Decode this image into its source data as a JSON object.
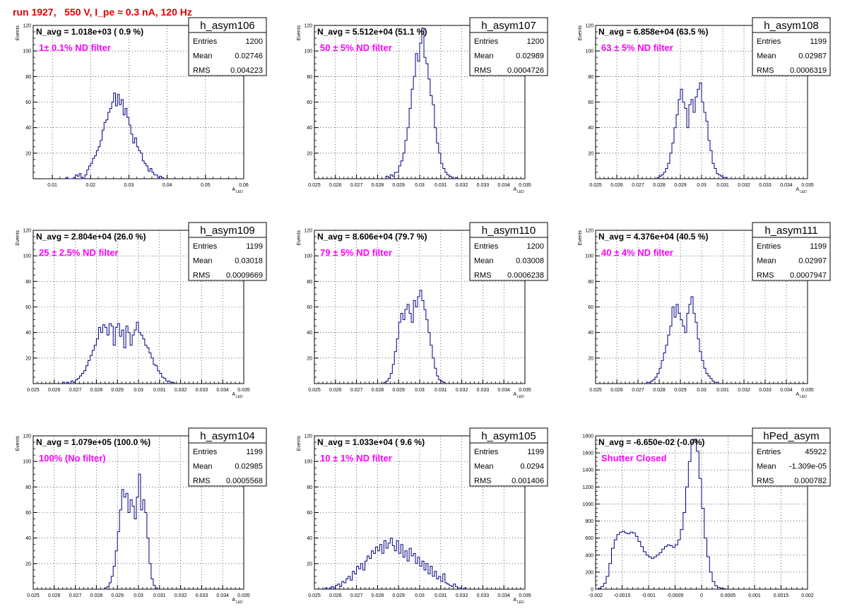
{
  "header": {
    "run_label": "run 1927,   550 V, I_pe ≈ 0.3 nA, 120 Hz"
  },
  "colors": {
    "hist_line": "#000080",
    "annotation_text": "#ff00ff",
    "title_text": "#e00000",
    "grid": "#000000"
  },
  "chart_data": [
    {
      "type": "bar",
      "name": "h_asym106",
      "stats": [
        [
          "Entries",
          "1200"
        ],
        [
          "Mean",
          "0.02746"
        ],
        [
          "RMS",
          "0.004223"
        ]
      ],
      "navg_label": "N_avg = 1.018e+03 ( 0.9 %)",
      "annotation": "1± 0.1% ND filter",
      "ylabel": "Events",
      "xlabel": "A",
      "xlabel_sub": "LED",
      "xlim": [
        0.005,
        0.06
      ],
      "ylim": [
        0,
        120
      ],
      "xticks": [
        0.01,
        0.02,
        0.03,
        0.04,
        0.05,
        0.06
      ],
      "xtick_labels": [
        "0.01",
        "0.02",
        "0.03",
        "0.04",
        "0.05",
        "0.06"
      ],
      "yticks": [
        0,
        20,
        40,
        60,
        80,
        100,
        120
      ],
      "ytick_labels": [
        "",
        "20",
        "40",
        "60",
        "80",
        "100",
        "120"
      ],
      "grid": true,
      "bins": {
        "x0": 0.0135,
        "width": 0.0005,
        "values": [
          1,
          0,
          0,
          0,
          1,
          3,
          2,
          4,
          1,
          0,
          3,
          7,
          10,
          12,
          16,
          18,
          22,
          25,
          30,
          38,
          44,
          46,
          52,
          55,
          60,
          67,
          57,
          66,
          58,
          62,
          50,
          55,
          48,
          42,
          35,
          28,
          32,
          25,
          22,
          20,
          14,
          12,
          10,
          6,
          8,
          5,
          3,
          3,
          1,
          2,
          1
        ]
      }
    },
    {
      "type": "bar",
      "name": "h_asym107",
      "stats": [
        [
          "Entries",
          "1200"
        ],
        [
          "Mean",
          "0.02989"
        ],
        [
          "RMS",
          "0.0004726"
        ]
      ],
      "navg_label": "N_avg = 5.512e+04 (51.1 %)",
      "annotation": "50 ± 5% ND filter",
      "ylabel": "Events",
      "xlabel": "A",
      "xlabel_sub": "LED",
      "xlim": [
        0.025,
        0.035
      ],
      "ylim": [
        0,
        120
      ],
      "xticks": [
        0.025,
        0.026,
        0.027,
        0.028,
        0.029,
        0.03,
        0.031,
        0.032,
        0.033,
        0.034,
        0.035
      ],
      "xtick_labels": [
        "0.025",
        "0.026",
        "0.027",
        "0.028",
        "0.029",
        "0.03",
        "0.031",
        "0.032",
        "0.033",
        "0.034",
        "0.035"
      ],
      "yticks": [
        0,
        20,
        40,
        60,
        80,
        100,
        120
      ],
      "ytick_labels": [
        "",
        "20",
        "40",
        "60",
        "80",
        "100",
        "120"
      ],
      "grid": true,
      "bins": {
        "x0": 0.0284,
        "width": 0.0001,
        "values": [
          2,
          1,
          3,
          2,
          5,
          5,
          10,
          14,
          20,
          30,
          40,
          55,
          70,
          80,
          98,
          92,
          106,
          118,
          95,
          90,
          78,
          65,
          58,
          40,
          28,
          20,
          12,
          8,
          5,
          3,
          2,
          1,
          0,
          1
        ]
      }
    },
    {
      "type": "bar",
      "name": "h_asym108",
      "stats": [
        [
          "Entries",
          "1199"
        ],
        [
          "Mean",
          "0.02987"
        ],
        [
          "RMS",
          "0.0006319"
        ]
      ],
      "navg_label": "N_avg = 6.858e+04 (63.5 %)",
      "annotation": "63 ± 5% ND filter",
      "ylabel": "Events",
      "xlabel": "A",
      "xlabel_sub": "LED",
      "xlim": [
        0.025,
        0.035
      ],
      "ylim": [
        0,
        120
      ],
      "xticks": [
        0.025,
        0.026,
        0.027,
        0.028,
        0.029,
        0.03,
        0.031,
        0.032,
        0.033,
        0.034,
        0.035
      ],
      "xtick_labels": [
        "0.025",
        "0.026",
        "0.027",
        "0.028",
        "0.029",
        "0.03",
        "0.031",
        "0.032",
        "0.033",
        "0.034",
        "0.035"
      ],
      "yticks": [
        0,
        20,
        40,
        60,
        80,
        100,
        120
      ],
      "ytick_labels": [
        "",
        "20",
        "40",
        "60",
        "80",
        "100",
        "120"
      ],
      "grid": true,
      "bins": {
        "x0": 0.0279,
        "width": 0.0001,
        "values": [
          1,
          2,
          3,
          5,
          8,
          12,
          20,
          28,
          40,
          50,
          62,
          70,
          60,
          55,
          40,
          58,
          62,
          52,
          64,
          70,
          75,
          60,
          52,
          45,
          30,
          22,
          12,
          8,
          4,
          3,
          2,
          1,
          1
        ]
      }
    },
    {
      "type": "bar",
      "name": "h_asym109",
      "stats": [
        [
          "Entries",
          "1199"
        ],
        [
          "Mean",
          "0.03018"
        ],
        [
          "RMS",
          "0.0009669"
        ]
      ],
      "navg_label": "N_avg = 2.804e+04 (26.0 %)",
      "annotation": "25 ± 2.5% ND filter",
      "ylabel": "Events",
      "xlabel": "A",
      "xlabel_sub": "LED",
      "xlim": [
        0.025,
        0.035
      ],
      "ylim": [
        0,
        120
      ],
      "xticks": [
        0.025,
        0.026,
        0.027,
        0.028,
        0.029,
        0.03,
        0.031,
        0.032,
        0.033,
        0.034,
        0.035
      ],
      "xtick_labels": [
        "0.025",
        "0.026",
        "0.027",
        "0.028",
        "0.029",
        "0.03",
        "0.031",
        "0.032",
        "0.033",
        "0.034",
        "0.035"
      ],
      "yticks": [
        0,
        20,
        40,
        60,
        80,
        100,
        120
      ],
      "ytick_labels": [
        "",
        "20",
        "40",
        "60",
        "80",
        "100",
        "120"
      ],
      "grid": true,
      "bins": {
        "x0": 0.0264,
        "width": 0.0001,
        "values": [
          1,
          0,
          1,
          0,
          2,
          1,
          3,
          4,
          6,
          8,
          10,
          14,
          18,
          22,
          26,
          30,
          35,
          44,
          40,
          46,
          44,
          38,
          47,
          45,
          30,
          44,
          47,
          37,
          42,
          28,
          45,
          40,
          30,
          38,
          42,
          48,
          40,
          38,
          35,
          30,
          28,
          24,
          20,
          15,
          14,
          10,
          8,
          5,
          4,
          2,
          2,
          1,
          1
        ]
      }
    },
    {
      "type": "bar",
      "name": "h_asym110",
      "stats": [
        [
          "Entries",
          "1200"
        ],
        [
          "Mean",
          "0.03008"
        ],
        [
          "RMS",
          "0.0006238"
        ]
      ],
      "navg_label": "N_avg = 8.606e+04 (79.7 %)",
      "annotation": "79 ± 5% ND filter",
      "ylabel": "Events",
      "xlabel": "A",
      "xlabel_sub": "LED",
      "xlim": [
        0.025,
        0.035
      ],
      "ylim": [
        0,
        120
      ],
      "xticks": [
        0.025,
        0.026,
        0.027,
        0.028,
        0.029,
        0.03,
        0.031,
        0.032,
        0.033,
        0.034,
        0.035
      ],
      "xtick_labels": [
        "0.025",
        "0.026",
        "0.027",
        "0.028",
        "0.029",
        "0.03",
        "0.031",
        "0.032",
        "0.033",
        "0.034",
        "0.035"
      ],
      "yticks": [
        0,
        20,
        40,
        60,
        80,
        100,
        120
      ],
      "ytick_labels": [
        "",
        "20",
        "40",
        "60",
        "80",
        "100",
        "120"
      ],
      "grid": true,
      "bins": {
        "x0": 0.0283,
        "width": 0.0001,
        "values": [
          1,
          2,
          4,
          8,
          15,
          25,
          35,
          48,
          55,
          50,
          58,
          62,
          55,
          48,
          65,
          60,
          68,
          73,
          65,
          58,
          50,
          40,
          30,
          20,
          12,
          6,
          3,
          2,
          1
        ]
      }
    },
    {
      "type": "bar",
      "name": "h_asym111",
      "stats": [
        [
          "Entries",
          "1199"
        ],
        [
          "Mean",
          "0.02997"
        ],
        [
          "RMS",
          "0.0007947"
        ]
      ],
      "navg_label": "N_avg = 4.376e+04 (40.5 %)",
      "annotation": "40 ± 4% ND filter",
      "ylabel": "Events",
      "xlabel": "A",
      "xlabel_sub": "LED",
      "xlim": [
        0.025,
        0.035
      ],
      "ylim": [
        0,
        120
      ],
      "xticks": [
        0.025,
        0.026,
        0.027,
        0.028,
        0.029,
        0.03,
        0.031,
        0.032,
        0.033,
        0.034,
        0.035
      ],
      "xtick_labels": [
        "0.025",
        "0.026",
        "0.027",
        "0.028",
        "0.029",
        "0.03",
        "0.031",
        "0.032",
        "0.033",
        "0.034",
        "0.035"
      ],
      "yticks": [
        0,
        20,
        40,
        60,
        80,
        100,
        120
      ],
      "ytick_labels": [
        "",
        "20",
        "40",
        "60",
        "80",
        "100",
        "120"
      ],
      "grid": true,
      "bins": {
        "x0": 0.0274,
        "width": 0.0001,
        "values": [
          1,
          1,
          2,
          3,
          5,
          8,
          12,
          18,
          24,
          30,
          38,
          45,
          60,
          52,
          62,
          55,
          50,
          45,
          40,
          55,
          62,
          68,
          55,
          48,
          35,
          25,
          18,
          12,
          8,
          6,
          4,
          2,
          1,
          1
        ]
      }
    },
    {
      "type": "bar",
      "name": "h_asym104",
      "stats": [
        [
          "Entries",
          "1199"
        ],
        [
          "Mean",
          "0.02985"
        ],
        [
          "RMS",
          "0.0005568"
        ]
      ],
      "navg_label": "N_avg = 1.079e+05 (100.0 %)",
      "annotation": "100% (No filter)",
      "ylabel": "Events",
      "xlabel": "A",
      "xlabel_sub": "LED",
      "xlim": [
        0.025,
        0.035
      ],
      "ylim": [
        0,
        120
      ],
      "xticks": [
        0.025,
        0.026,
        0.027,
        0.028,
        0.029,
        0.03,
        0.031,
        0.032,
        0.033,
        0.034,
        0.035
      ],
      "xtick_labels": [
        "0.025",
        "0.026",
        "0.027",
        "0.028",
        "0.029",
        "0.03",
        "0.031",
        "0.032",
        "0.033",
        "0.034",
        "0.035"
      ],
      "yticks": [
        0,
        20,
        40,
        60,
        80,
        100,
        120
      ],
      "ytick_labels": [
        "",
        "20",
        "40",
        "60",
        "80",
        "100",
        "120"
      ],
      "grid": true,
      "bins": {
        "x0": 0.0284,
        "width": 0.0001,
        "values": [
          1,
          2,
          5,
          10,
          18,
          30,
          45,
          62,
          78,
          72,
          75,
          60,
          70,
          65,
          55,
          72,
          90,
          62,
          70,
          60,
          40,
          20,
          8,
          3,
          1
        ]
      }
    },
    {
      "type": "bar",
      "name": "h_asym105",
      "stats": [
        [
          "Entries",
          "1199"
        ],
        [
          "Mean",
          "0.0294"
        ],
        [
          "RMS",
          "0.001406"
        ]
      ],
      "navg_label": "N_avg = 1.033e+04 ( 9.6 %)",
      "annotation": "10 ± 1% ND filter",
      "ylabel": "Events",
      "xlabel": "A",
      "xlabel_sub": "LED",
      "xlim": [
        0.025,
        0.035
      ],
      "ylim": [
        0,
        120
      ],
      "xticks": [
        0.025,
        0.026,
        0.027,
        0.028,
        0.029,
        0.03,
        0.031,
        0.032,
        0.033,
        0.034,
        0.035
      ],
      "xtick_labels": [
        "0.025",
        "0.026",
        "0.027",
        "0.028",
        "0.029",
        "0.03",
        "0.031",
        "0.032",
        "0.033",
        "0.034",
        "0.035"
      ],
      "yticks": [
        0,
        20,
        40,
        60,
        80,
        100,
        120
      ],
      "ytick_labels": [
        "",
        "20",
        "40",
        "60",
        "80",
        "100",
        "120"
      ],
      "grid": true,
      "bins": {
        "x0": 0.0255,
        "width": 0.0001,
        "values": [
          1,
          0,
          1,
          2,
          1,
          3,
          4,
          2,
          6,
          5,
          8,
          10,
          7,
          14,
          12,
          18,
          16,
          20,
          15,
          22,
          26,
          24,
          30,
          28,
          33,
          30,
          35,
          28,
          38,
          32,
          36,
          40,
          34,
          30,
          38,
          28,
          35,
          25,
          30,
          22,
          32,
          26,
          28,
          20,
          25,
          18,
          22,
          15,
          20,
          12,
          18,
          10,
          14,
          8,
          10,
          6,
          12,
          5,
          4,
          3,
          2,
          4,
          2,
          1,
          1,
          0,
          1
        ]
      }
    },
    {
      "type": "bar",
      "name": "hPed_asym",
      "stats": [
        [
          "Entries",
          "45922"
        ],
        [
          "Mean",
          "-1.309e-05"
        ],
        [
          "RMS",
          "0.000782"
        ]
      ],
      "navg_label": "N_avg = -6.650e-02 (-0.0%)",
      "annotation": "Shutter Closed",
      "ylabel": "",
      "xlabel": "",
      "xlabel_sub": "",
      "xlim": [
        -0.002,
        0.002
      ],
      "ylim": [
        0,
        1800
      ],
      "xticks": [
        -0.002,
        -0.0015,
        -0.001,
        -0.0005,
        0,
        0.0005,
        0.001,
        0.0015,
        0.002
      ],
      "xtick_labels": [
        "-0.002",
        "-0.0015",
        "-0.001",
        "-0.0005",
        "0",
        "0.0005",
        "0.001",
        "0.0015",
        "0.002"
      ],
      "yticks": [
        0,
        200,
        400,
        600,
        800,
        1000,
        1200,
        1400,
        1600,
        1800
      ],
      "ytick_labels": [
        "0",
        "200",
        "400",
        "600",
        "800",
        "1000",
        "1200",
        "1400",
        "1600",
        "1800"
      ],
      "grid": true,
      "bins": {
        "x0": -0.00195,
        "width": 5e-05,
        "values": [
          10,
          30,
          70,
          150,
          300,
          480,
          580,
          640,
          670,
          680,
          660,
          650,
          670,
          660,
          620,
          560,
          500,
          440,
          400,
          380,
          360,
          380,
          400,
          430,
          470,
          500,
          520,
          510,
          490,
          520,
          580,
          700,
          900,
          1200,
          1500,
          1720,
          1760,
          1620,
          1300,
          950,
          600,
          380,
          200,
          90,
          40,
          20,
          10,
          5
        ]
      }
    }
  ]
}
